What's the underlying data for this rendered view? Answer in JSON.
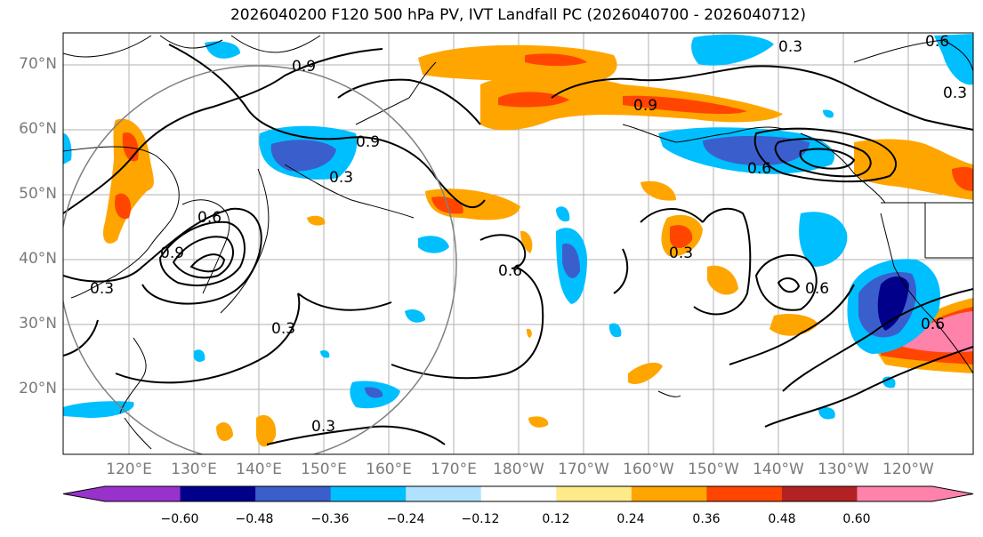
{
  "title": "2026040200 F120 500 hPa PV, IVT Landfall PC (2026040700 - 2026040712)",
  "lat_labels": [
    "70°N",
    "60°N",
    "50°N",
    "40°N",
    "30°N",
    "20°N"
  ],
  "lon_labels": [
    "120°E",
    "130°E",
    "140°E",
    "150°E",
    "160°E",
    "170°E",
    "180°W",
    "170°W",
    "160°W",
    "150°W",
    "140°W",
    "130°W",
    "120°W"
  ],
  "colorbar": {
    "ticks": [
      "−0.60",
      "−0.48",
      "−0.36",
      "−0.24",
      "−0.12",
      "0.12",
      "0.24",
      "0.36",
      "0.48",
      "0.60"
    ],
    "colors": [
      "#9932cc",
      "#00008b",
      "#3a5fcd",
      "#00bfff",
      "#b0e2ff",
      "#ffffff",
      "#ffea8a",
      "#ffa500",
      "#ff4500",
      "#b22222",
      "#ff82ab"
    ]
  },
  "contour_labels": [
    "0.3",
    "0.6",
    "0.9"
  ]
}
